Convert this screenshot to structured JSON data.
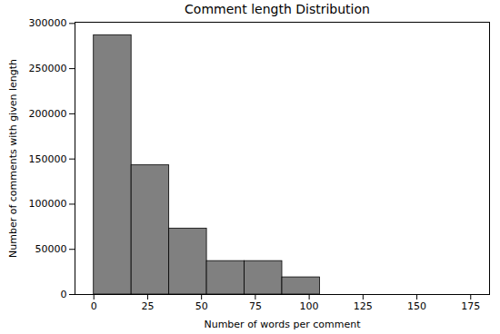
{
  "chart_data": {
    "type": "histogram",
    "title": "Comment length Distribution",
    "x_label": "Number of words per comment",
    "y_label": "Number of comments with given length",
    "bins": [
      0,
      17.5,
      35,
      52.5,
      70,
      87.5,
      105,
      122.5,
      140,
      157.5,
      175
    ],
    "values": [
      287000,
      143000,
      73000,
      37000,
      37000,
      19000,
      0,
      0,
      0,
      0
    ],
    "color": "#808080",
    "xlim": [
      -8.75,
      183.75
    ],
    "xticks": [
      0,
      25,
      50,
      75,
      100,
      125,
      150,
      175
    ],
    "ylim": [
      0,
      301350
    ],
    "yticks": [
      0,
      50000,
      100000,
      150000,
      200000,
      250000,
      300000
    ],
    "grid": false
  }
}
